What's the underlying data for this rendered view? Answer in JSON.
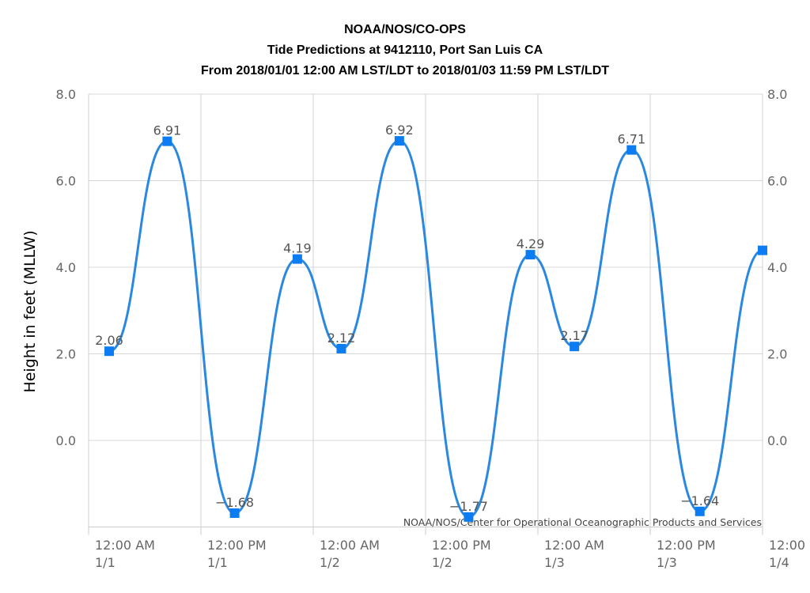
{
  "chart_data": {
    "type": "line",
    "title": "NOAA/NOS/CO-OPS",
    "subtitle": "Tide Predictions at 9412110, Port San Luis CA",
    "subtitle2": "From 2018/01/01 12:00 AM LST/LDT to 2018/01/03 11:59 PM LST/LDT",
    "ylabel": "Height in feet (MLLW)",
    "credit": "NOAA/NOS/Center for Operational Oceanographic Products and Services",
    "xlim": [
      0,
      72
    ],
    "xticks": [
      {
        "value": 0,
        "label": "12:00 AM 1/1"
      },
      {
        "value": 12,
        "label": "12:00 PM 1/1"
      },
      {
        "value": 24,
        "label": "12:00 AM 1/2"
      },
      {
        "value": 36,
        "label": "12:00 PM 1/2"
      },
      {
        "value": 48,
        "label": "12:00 AM 1/3"
      },
      {
        "value": 60,
        "label": "12:00 PM 1/3"
      },
      {
        "value": 72,
        "label": "12:00 1/4"
      }
    ],
    "ylim": [
      -2,
      8
    ],
    "yticks": [
      {
        "value": 0,
        "label": "0.0"
      },
      {
        "value": 2,
        "label": "2.0"
      },
      {
        "value": 4,
        "label": "4.0"
      },
      {
        "value": 6,
        "label": "6.0"
      },
      {
        "value": 8,
        "label": "8.0"
      }
    ],
    "y2lim": [
      -2,
      8
    ],
    "y2ticks": [
      {
        "value": 0,
        "label": "0.0"
      },
      {
        "value": 2,
        "label": "2.0"
      },
      {
        "value": 4,
        "label": "4.0"
      },
      {
        "value": 6,
        "label": "6.0"
      },
      {
        "value": 8,
        "label": "8.0"
      }
    ],
    "grid": true,
    "series": [
      {
        "color": "#2a88e0",
        "marker_color": "#0b7cf2",
        "x": [
          2.2,
          8.4,
          15.6,
          22.3,
          27.0,
          33.2,
          40.6,
          47.2,
          51.9,
          58.0,
          65.3,
          72
        ],
        "values": [
          2.06,
          6.91,
          -1.68,
          4.19,
          2.12,
          6.92,
          -1.77,
          4.29,
          2.17,
          6.71,
          -1.64,
          4.39
        ],
        "value_labels": [
          "2.06",
          "6.91",
          "−1.68",
          "4.19",
          "2.12",
          "6.92",
          "−1.77",
          "4.29",
          "2.17",
          "6.71",
          "−1.64",
          null
        ]
      }
    ]
  }
}
